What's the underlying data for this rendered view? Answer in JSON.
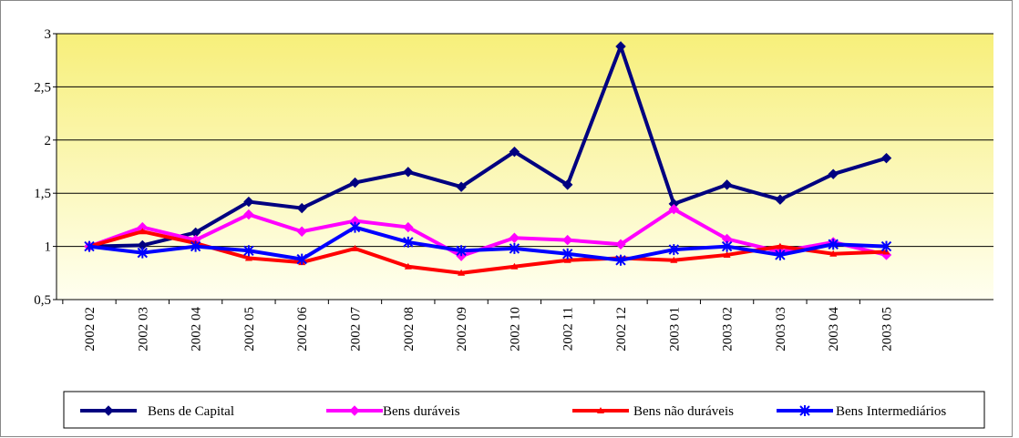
{
  "chart_data": {
    "type": "line",
    "categories": [
      "2002 02",
      "2002 03",
      "2002 04",
      "2002 05",
      "2002 06",
      "2002 07",
      "2002 08",
      "2002 09",
      "2002 10",
      "2002 11",
      "2002 12",
      "2003 01",
      "2003 02",
      "2003 03",
      "2003 04",
      "2003 05"
    ],
    "series": [
      {
        "name": "Bens de Capital",
        "color": "#000080",
        "marker": "diamond",
        "values": [
          1.0,
          1.01,
          1.13,
          1.42,
          1.36,
          1.6,
          1.7,
          1.56,
          1.89,
          1.58,
          2.88,
          1.4,
          1.58,
          1.44,
          1.68,
          1.83
        ]
      },
      {
        "name": "Bens duráveis",
        "color": "#ff00ff",
        "marker": "diamond",
        "values": [
          1.0,
          1.18,
          1.06,
          1.3,
          1.14,
          1.24,
          1.18,
          0.91,
          1.08,
          1.06,
          1.02,
          1.35,
          1.07,
          0.95,
          1.04,
          0.92
        ]
      },
      {
        "name": "Bens não duráveis",
        "color": "#ff0000",
        "marker": "triangle",
        "values": [
          1.0,
          1.14,
          1.03,
          0.89,
          0.85,
          0.98,
          0.81,
          0.75,
          0.81,
          0.87,
          0.89,
          0.87,
          0.92,
          1.0,
          0.93,
          0.95
        ]
      },
      {
        "name": "Bens Intermediários",
        "color": "#0000ff",
        "marker": "star",
        "values": [
          1.0,
          0.94,
          1.0,
          0.96,
          0.88,
          1.18,
          1.04,
          0.96,
          0.98,
          0.93,
          0.87,
          0.97,
          1.0,
          0.92,
          1.02,
          1.0
        ]
      }
    ],
    "ylim": [
      0.5,
      3
    ],
    "yticks": [
      {
        "value": 0.5,
        "label": "0,5"
      },
      1,
      {
        "value": 1.5,
        "label": "1,5"
      },
      2,
      {
        "value": 2.5,
        "label": "2,5"
      },
      3
    ],
    "grid": true
  }
}
